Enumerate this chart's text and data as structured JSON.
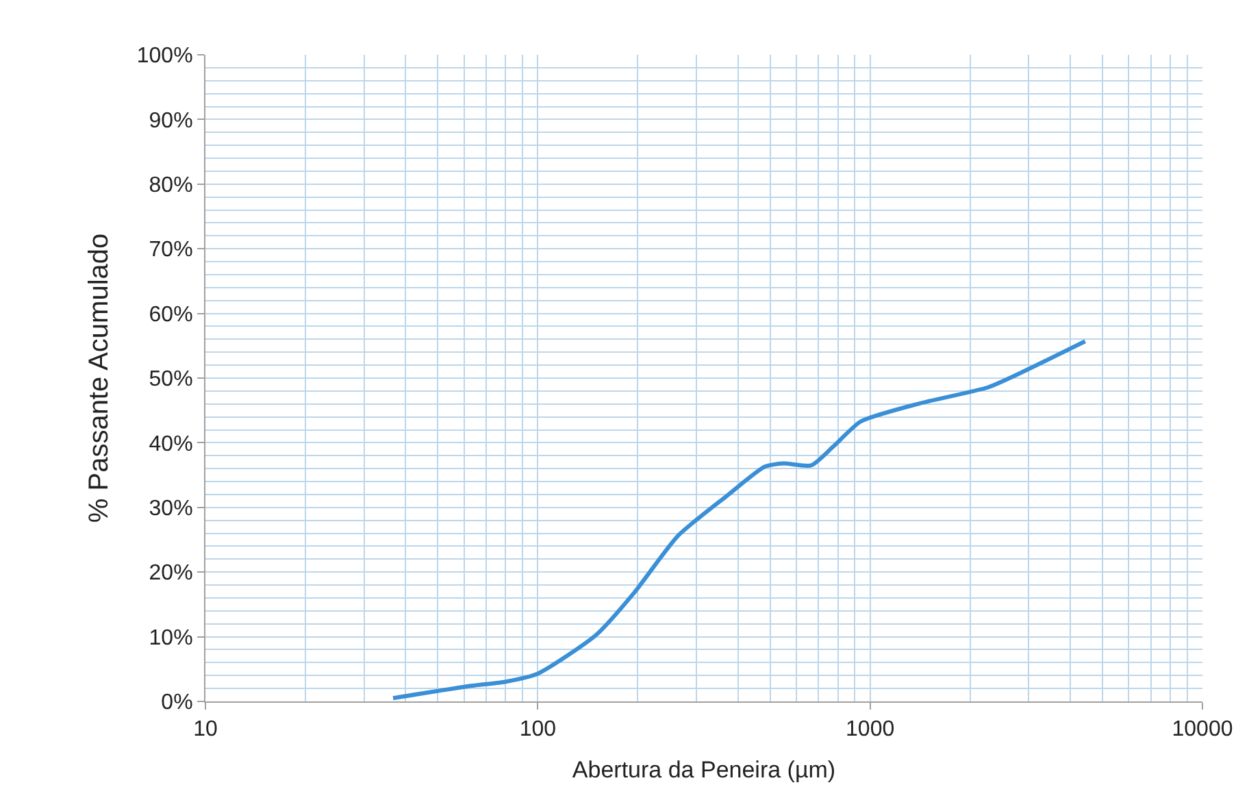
{
  "chart_data": {
    "type": "line",
    "xlabel": "Abertura da Peneira (µm)",
    "ylabel": "% Passante Acumulado",
    "x": [
      36.7,
      63,
      79,
      100,
      150,
      195,
      264,
      371,
      482,
      547,
      665,
      774,
      938,
      1413,
      2270,
      2943,
      4436
    ],
    "series": [
      {
        "color": "#3a8fd6",
        "values": [
          0.5,
          2.4,
          3.0,
          4.3,
          10.3,
          16.8,
          25.6,
          31.8,
          36.3,
          36.8,
          36.5,
          39.4,
          43.3,
          46.1,
          48.6,
          51.2,
          55.7
        ]
      }
    ],
    "log": "x",
    "xlim": [
      10,
      10000
    ],
    "xticks": [
      10,
      100,
      1000,
      10000
    ],
    "ylim": [
      0,
      100
    ],
    "yticks": [
      {
        "value": 0,
        "label": "0%"
      },
      {
        "value": 10,
        "label": "10%"
      },
      {
        "value": 20,
        "label": "20%"
      },
      {
        "value": 30,
        "label": "30%"
      },
      {
        "value": 40,
        "label": "40%"
      },
      {
        "value": 50,
        "label": "50%"
      },
      {
        "value": 60,
        "label": "60%"
      },
      {
        "value": 70,
        "label": "70%"
      },
      {
        "value": 80,
        "label": "80%"
      },
      {
        "value": 90,
        "label": "90%"
      },
      {
        "value": 100,
        "label": "100%"
      }
    ],
    "grid": true,
    "marker": "none",
    "line_style": "solid",
    "legend": false
  }
}
